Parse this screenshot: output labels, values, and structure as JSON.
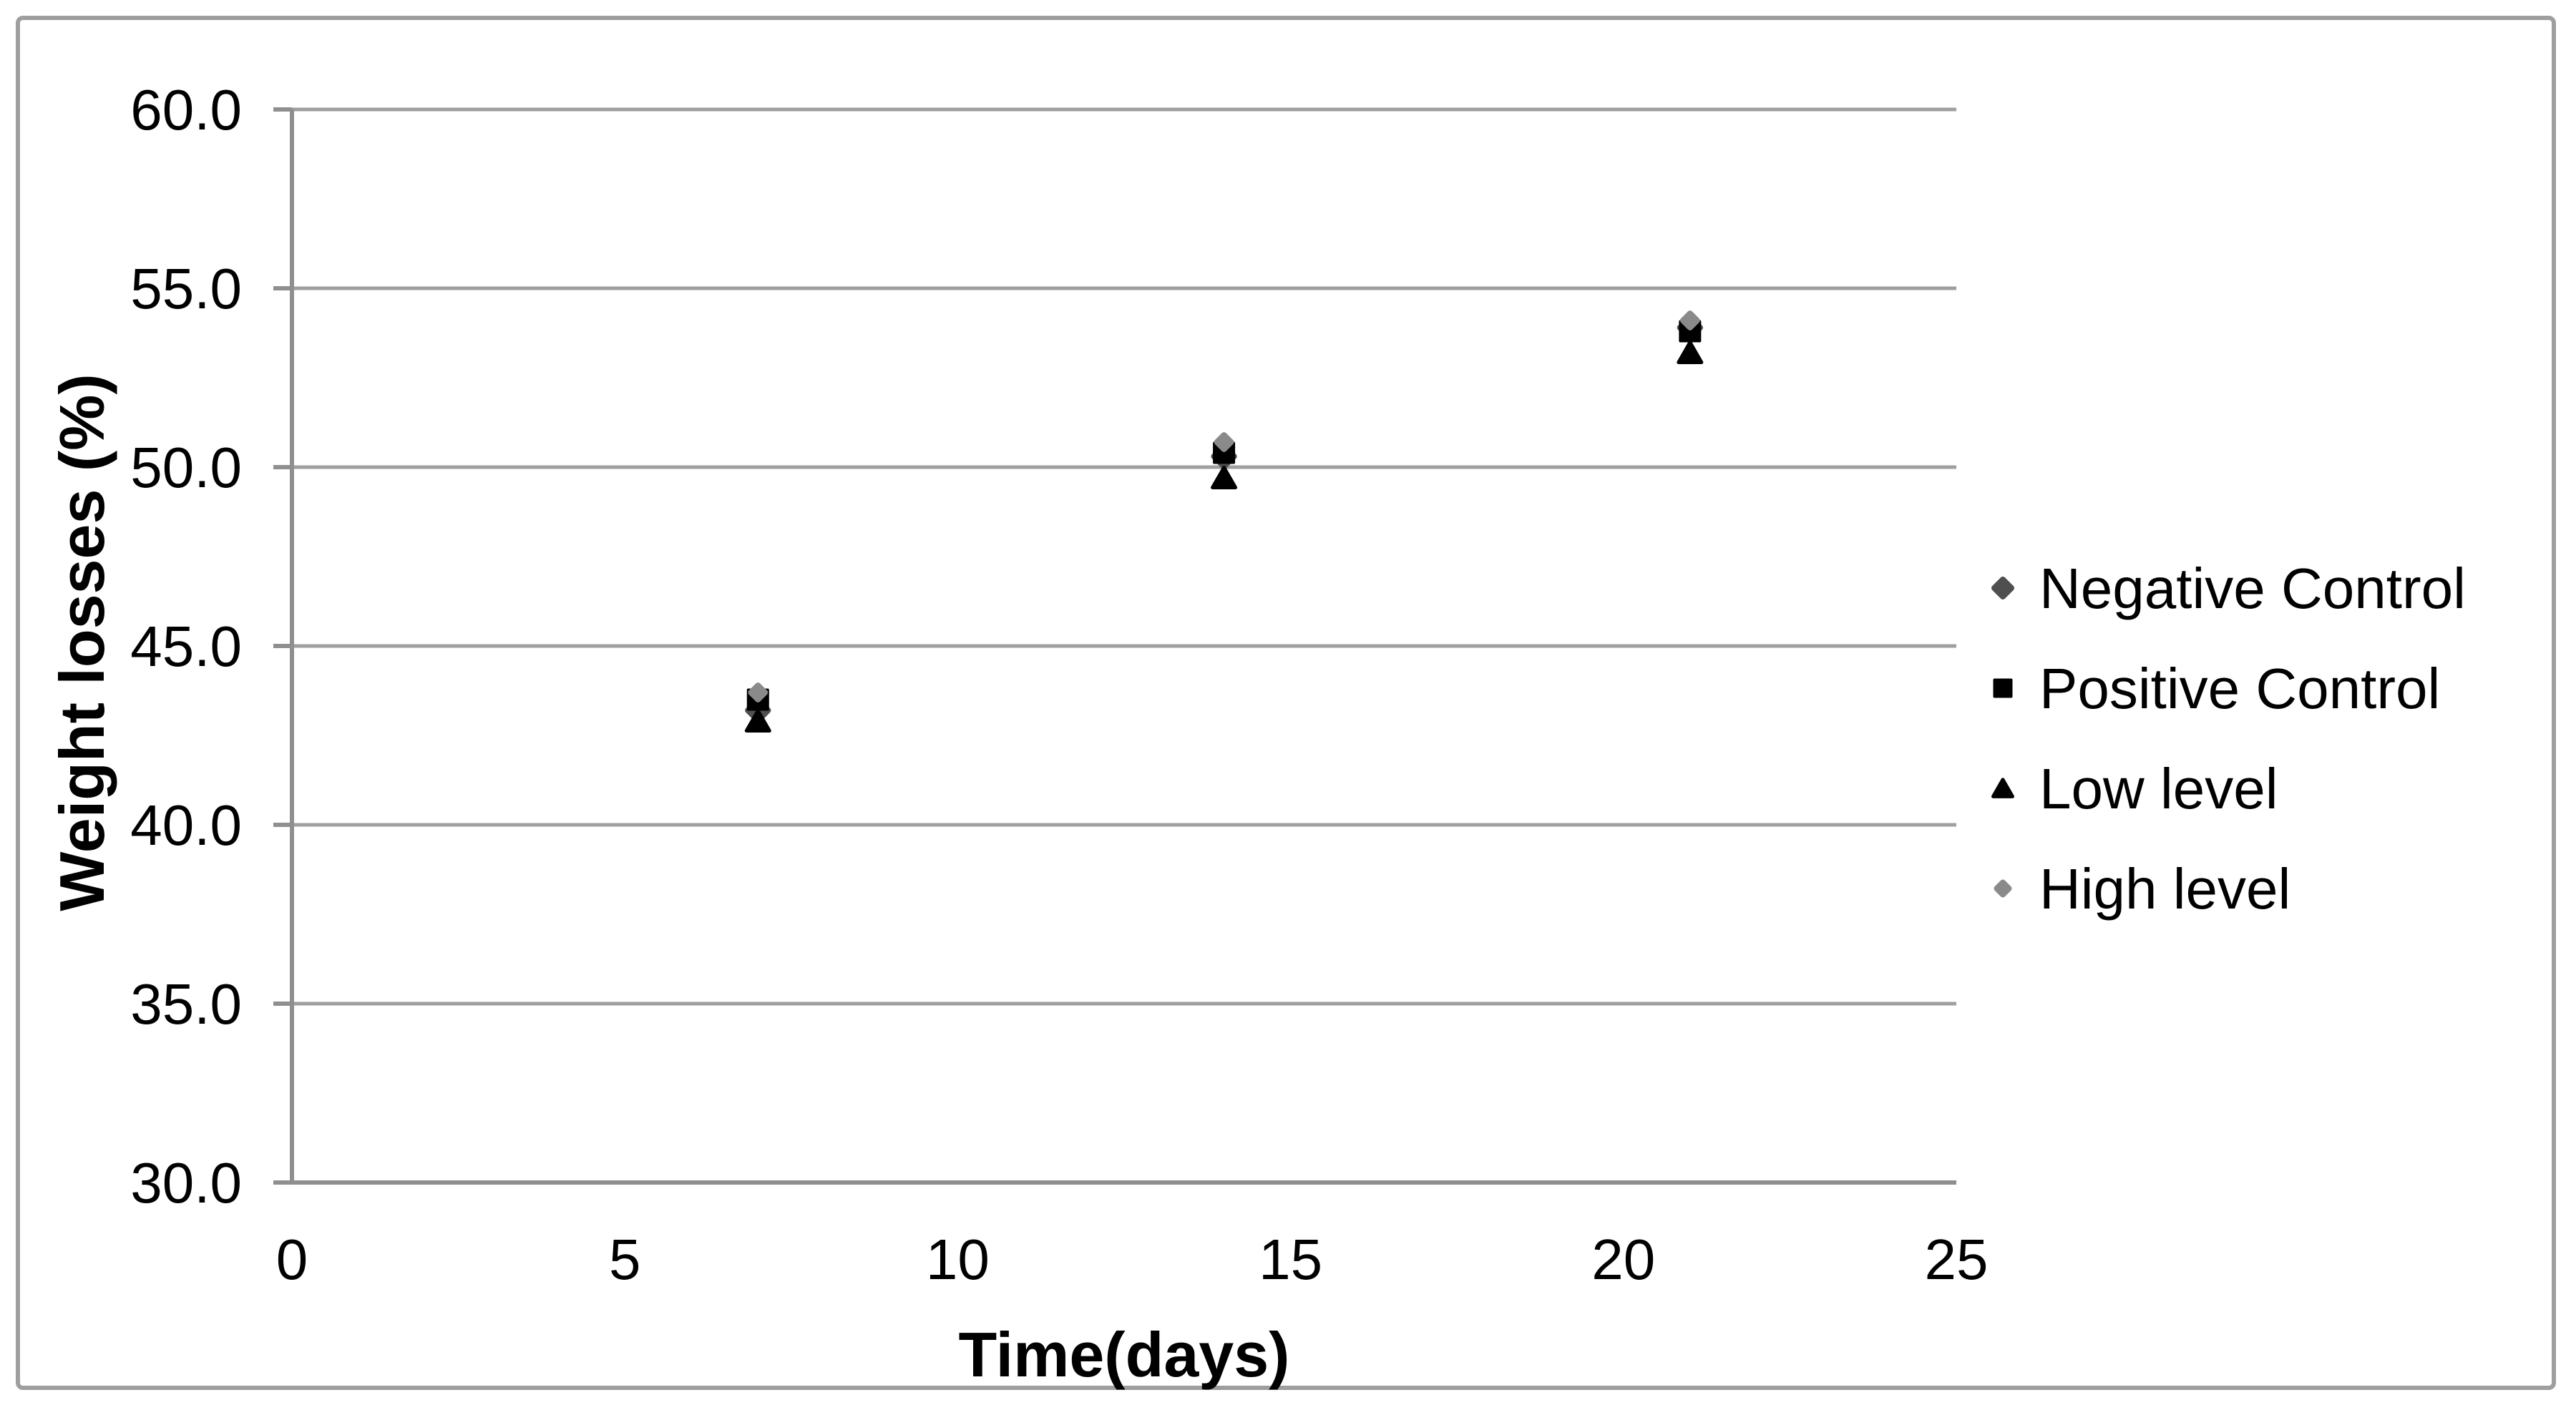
{
  "figure": {
    "background": "#ffffff",
    "border_color": "#9e9e9e"
  },
  "chart_data": {
    "type": "scatter",
    "title": "",
    "xlabel": "Time(days)",
    "ylabel": "Weight losses (%)",
    "xlim": [
      0,
      25
    ],
    "ylim": [
      30,
      60
    ],
    "x_ticks": [
      0,
      5,
      10,
      15,
      20,
      25
    ],
    "x_tick_labels": [
      "0",
      "5",
      "10",
      "15",
      "20",
      "25"
    ],
    "y_ticks": [
      30,
      35,
      40,
      45,
      50,
      55,
      60
    ],
    "y_tick_labels": [
      "30.0",
      "35.0",
      "40.0",
      "45.0",
      "50.0",
      "55.0",
      "60.0"
    ],
    "grid": "horizontal-only",
    "gridline_color": "#9f9f9f",
    "axis_color": "#8f8f8f",
    "tick_label_color": "#000000",
    "legend_position": "right-outside",
    "x": [
      7,
      14,
      21
    ],
    "series": [
      {
        "name": "Negative Control",
        "marker": "diamond",
        "color": "#4f4f4f",
        "values": [
          43.2,
          50.3,
          53.9
        ]
      },
      {
        "name": "Positive Control",
        "marker": "square",
        "color": "#000000",
        "values": [
          43.5,
          50.4,
          53.8
        ]
      },
      {
        "name": "Low level",
        "marker": "triangle",
        "color": "#000000",
        "values": [
          42.9,
          49.7,
          53.2
        ]
      },
      {
        "name": "High level",
        "marker": "diamond",
        "color": "#8a8a8a",
        "values": [
          43.7,
          50.7,
          54.1
        ]
      }
    ]
  }
}
